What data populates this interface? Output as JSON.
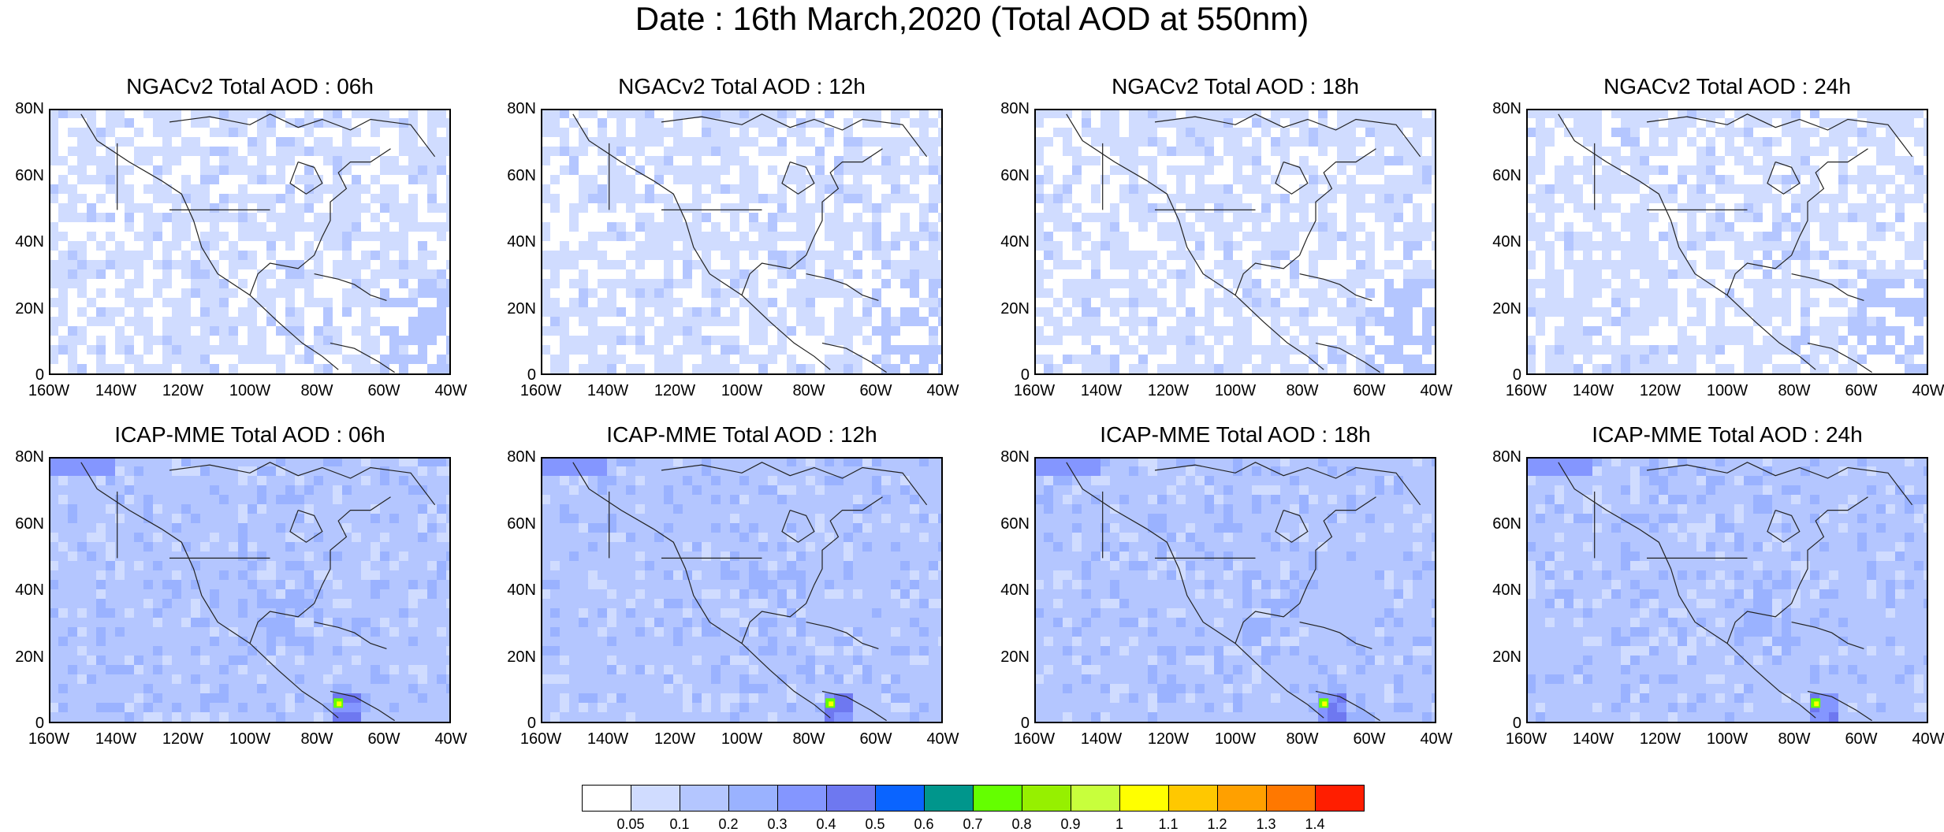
{
  "title": "Date : 16th March,2020 (Total AOD at 550nm)",
  "panels": [
    {
      "title": "NGACv2 Total AOD : 06h",
      "model": "NGACv2",
      "hour": "06h",
      "base": 1
    },
    {
      "title": "NGACv2 Total AOD : 12h",
      "model": "NGACv2",
      "hour": "12h",
      "base": 1
    },
    {
      "title": "NGACv2 Total AOD : 18h",
      "model": "NGACv2",
      "hour": "18h",
      "base": 1
    },
    {
      "title": "NGACv2 Total AOD : 24h",
      "model": "NGACv2",
      "hour": "24h",
      "base": 1
    },
    {
      "title": "ICAP-MME Total AOD : 06h",
      "model": "ICAP-MME",
      "hour": "06h",
      "base": 2
    },
    {
      "title": "ICAP-MME Total AOD : 12h",
      "model": "ICAP-MME",
      "hour": "12h",
      "base": 2
    },
    {
      "title": "ICAP-MME Total AOD : 18h",
      "model": "ICAP-MME",
      "hour": "18h",
      "base": 2
    },
    {
      "title": "ICAP-MME Total AOD : 24h",
      "model": "ICAP-MME",
      "hour": "24h",
      "base": 2
    }
  ],
  "y_ticks": [
    "80N",
    "60N",
    "40N",
    "20N",
    "0"
  ],
  "x_ticks": [
    "160W",
    "140W",
    "120W",
    "100W",
    "80W",
    "60W",
    "40W"
  ],
  "colorbar": {
    "labels": [
      "0.05",
      "0.1",
      "0.2",
      "0.3",
      "0.4",
      "0.5",
      "0.6",
      "0.7",
      "0.8",
      "0.9",
      "1",
      "1.1",
      "1.2",
      "1.3",
      "1.4"
    ],
    "colors": [
      "#ffffff",
      "#d0dcff",
      "#b4c6ff",
      "#9ab2ff",
      "#8496ff",
      "#6e78f0",
      "#0a64ff",
      "#00968c",
      "#64ff00",
      "#96f000",
      "#c8ff3c",
      "#ffff00",
      "#ffc800",
      "#ffa000",
      "#ff7800",
      "#ff1e00"
    ]
  }
}
